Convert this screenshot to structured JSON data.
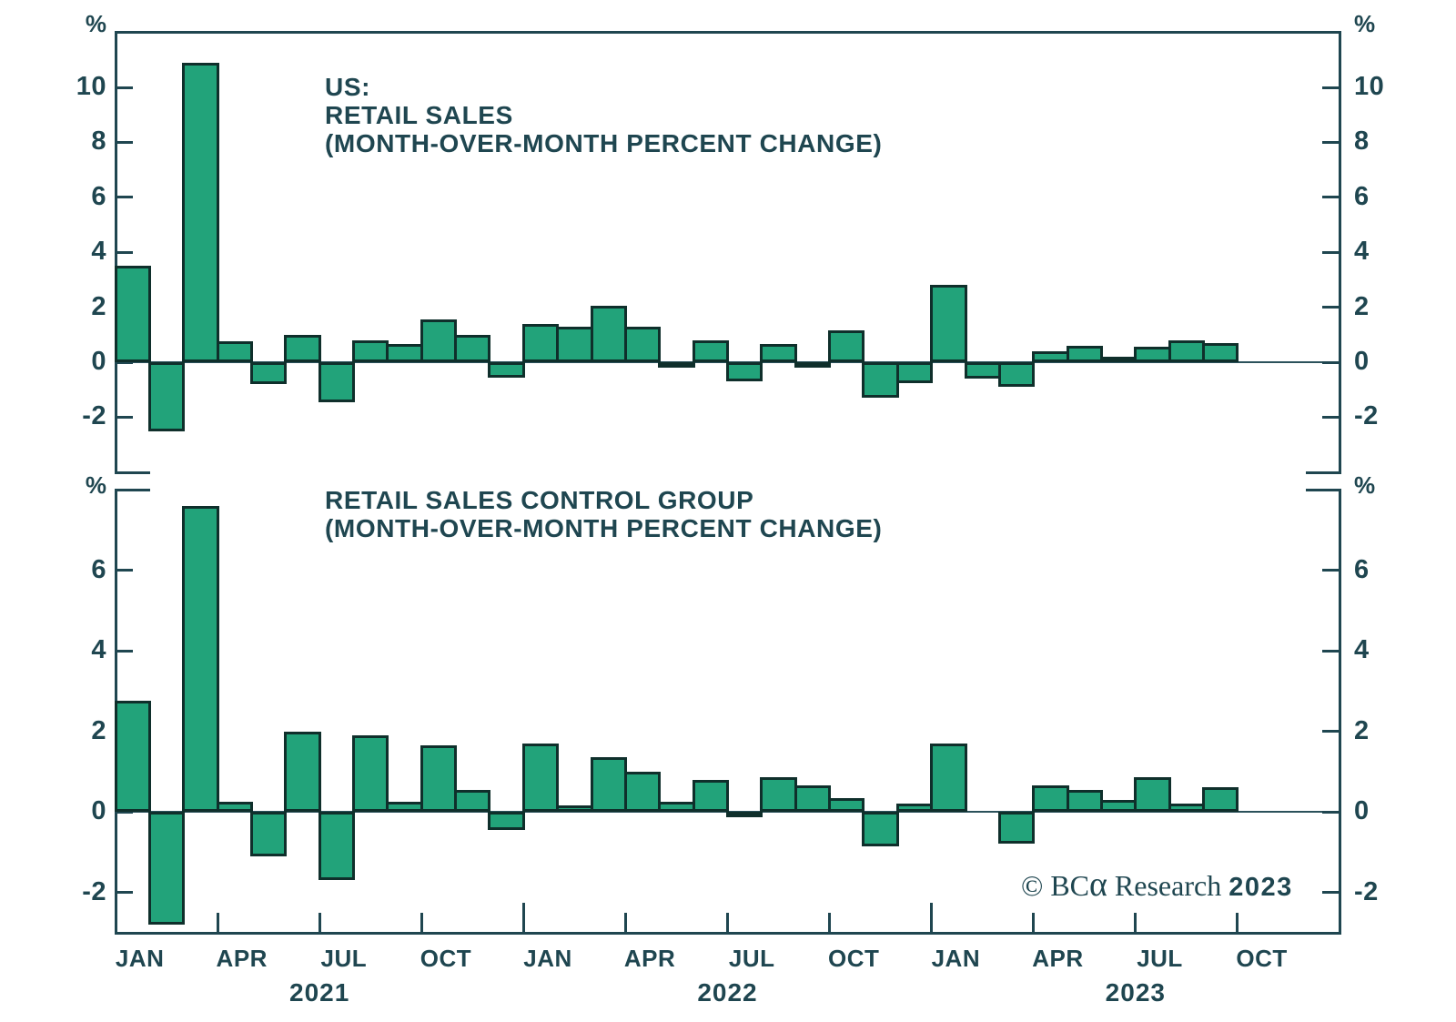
{
  "colors": {
    "text": "#1f4650",
    "axis": "#1f4650",
    "zero_line": "#2b515b",
    "bar_fill": "#22a37a",
    "bar_stroke": "#0f2f2b",
    "background": "#ffffff"
  },
  "footer": {
    "copyright_symbol": "©",
    "brand": "BC",
    "brand_alpha": "α",
    "research": "Research",
    "year": "2023"
  },
  "x_axis": {
    "month_labels": [
      {
        "text": "JAN",
        "month": 0
      },
      {
        "text": "APR",
        "month": 3
      },
      {
        "text": "JUL",
        "month": 6
      },
      {
        "text": "OCT",
        "month": 9
      },
      {
        "text": "JAN",
        "month": 12
      },
      {
        "text": "APR",
        "month": 15
      },
      {
        "text": "JUL",
        "month": 18
      },
      {
        "text": "OCT",
        "month": 21
      },
      {
        "text": "JAN",
        "month": 24
      },
      {
        "text": "APR",
        "month": 27
      },
      {
        "text": "JUL",
        "month": 30
      },
      {
        "text": "OCT",
        "month": 33
      }
    ],
    "year_labels": [
      {
        "text": "2021",
        "boundary": 6
      },
      {
        "text": "2022",
        "boundary": 18
      },
      {
        "text": "2023",
        "boundary": 30
      }
    ],
    "tick_boundaries": [
      3,
      6,
      9,
      12,
      15,
      18,
      21,
      24,
      27,
      30,
      33
    ]
  },
  "chart_data": [
    {
      "type": "bar",
      "title_lines": [
        "US:",
        "RETAIL SALES",
        "(MONTH-OVER-MONTH PERCENT CHANGE)"
      ],
      "unit": "%",
      "x": [
        "Jan 2021",
        "Feb 2021",
        "Mar 2021",
        "Apr 2021",
        "May 2021",
        "Jun 2021",
        "Jul 2021",
        "Aug 2021",
        "Sep 2021",
        "Oct 2021",
        "Nov 2021",
        "Dec 2021",
        "Jan 2022",
        "Feb 2022",
        "Mar 2022",
        "Apr 2022",
        "May 2022",
        "Jun 2022",
        "Jul 2022",
        "Aug 2022",
        "Sep 2022",
        "Oct 2022",
        "Nov 2022",
        "Dec 2022",
        "Jan 2023",
        "Feb 2023",
        "Mar 2023",
        "Apr 2023",
        "May 2023",
        "Jun 2023",
        "Jul 2023",
        "Aug 2023",
        "Sep 2023"
      ],
      "values": [
        3.5,
        -2.5,
        10.9,
        0.75,
        -0.8,
        1.0,
        -1.45,
        0.8,
        0.65,
        1.55,
        1.0,
        -0.55,
        1.4,
        1.3,
        2.05,
        1.3,
        -0.2,
        0.8,
        -0.7,
        0.65,
        -0.15,
        1.15,
        -1.3,
        -0.75,
        2.8,
        -0.6,
        -0.9,
        0.4,
        0.6,
        0.2,
        0.55,
        0.8,
        0.7
      ],
      "y_ticks": [
        10,
        8,
        6,
        4,
        2,
        0,
        -2
      ],
      "ylim": [
        -4,
        12
      ],
      "grid": false,
      "legend": "none"
    },
    {
      "type": "bar",
      "title_lines": [
        "RETAIL SALES CONTROL GROUP",
        "(MONTH-OVER-MONTH PERCENT CHANGE)"
      ],
      "unit": "%",
      "x": [
        "Jan 2021",
        "Feb 2021",
        "Mar 2021",
        "Apr 2021",
        "May 2021",
        "Jun 2021",
        "Jul 2021",
        "Aug 2021",
        "Sep 2021",
        "Oct 2021",
        "Nov 2021",
        "Dec 2021",
        "Jan 2022",
        "Feb 2022",
        "Mar 2022",
        "Apr 2022",
        "May 2022",
        "Jun 2022",
        "Jul 2022",
        "Aug 2022",
        "Sep 2022",
        "Oct 2022",
        "Nov 2022",
        "Dec 2022",
        "Jan 2023",
        "Feb 2023",
        "Mar 2023",
        "Apr 2023",
        "May 2023",
        "Jun 2023",
        "Jul 2023",
        "Aug 2023",
        "Sep 2023"
      ],
      "values": [
        2.75,
        -2.8,
        7.6,
        0.25,
        -1.1,
        2.0,
        -1.7,
        1.9,
        0.25,
        1.65,
        0.55,
        -0.45,
        1.7,
        0.15,
        1.35,
        1.0,
        0.25,
        0.8,
        -0.1,
        0.85,
        0.65,
        0.35,
        -0.85,
        0.2,
        1.7,
        0.0,
        -0.8,
        0.65,
        0.55,
        0.3,
        0.85,
        0.2,
        0.6
      ],
      "y_ticks": [
        6,
        4,
        2,
        0,
        -2
      ],
      "ylim": [
        -3,
        8
      ],
      "grid": false,
      "legend": "none"
    }
  ]
}
